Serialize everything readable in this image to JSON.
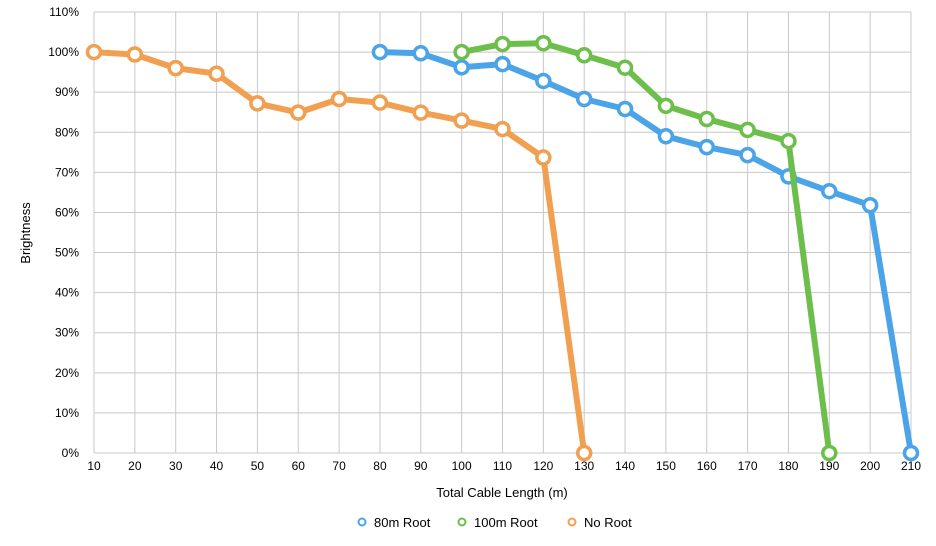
{
  "chart_data": {
    "type": "line",
    "xlabel": "Total Cable Length (m)",
    "ylabel": "Brightness",
    "x_ticks": [
      "10",
      "20",
      "30",
      "40",
      "50",
      "60",
      "70",
      "80",
      "90",
      "100",
      "110",
      "120",
      "130",
      "140",
      "150",
      "160",
      "170",
      "180",
      "190",
      "200",
      "210"
    ],
    "y_ticks": [
      "0%",
      "10%",
      "20%",
      "30%",
      "40%",
      "50%",
      "60%",
      "70%",
      "80%",
      "90%",
      "100%",
      "110%"
    ],
    "xlim": [
      10,
      210
    ],
    "ylim": [
      0,
      110
    ],
    "grid": true,
    "legend_position": "bottom",
    "series": [
      {
        "name": "80m Root",
        "color": "#4BA3E8",
        "x": [
          80,
          90,
          100,
          110,
          120,
          130,
          140,
          150,
          160,
          170,
          180,
          190,
          200,
          210
        ],
        "values": [
          100,
          99.7,
          96.2,
          97,
          92.8,
          88.3,
          85.8,
          79,
          76.3,
          74.3,
          69,
          65.3,
          61.8,
          0
        ]
      },
      {
        "name": "100m Root",
        "color": "#6CBF4A",
        "x": [
          100,
          110,
          120,
          130,
          140,
          150,
          160,
          170,
          180,
          190
        ],
        "values": [
          100,
          102,
          102.2,
          99.2,
          96.1,
          86.6,
          83.3,
          80.6,
          77.8,
          0
        ]
      },
      {
        "name": "No Root",
        "color": "#F0A050",
        "x": [
          10,
          20,
          30,
          40,
          50,
          60,
          70,
          80,
          90,
          100,
          110,
          120,
          130
        ],
        "values": [
          100,
          99.4,
          96,
          94.6,
          87.2,
          84.9,
          88.3,
          87.4,
          84.9,
          82.9,
          80.8,
          73.7,
          0
        ]
      }
    ]
  }
}
